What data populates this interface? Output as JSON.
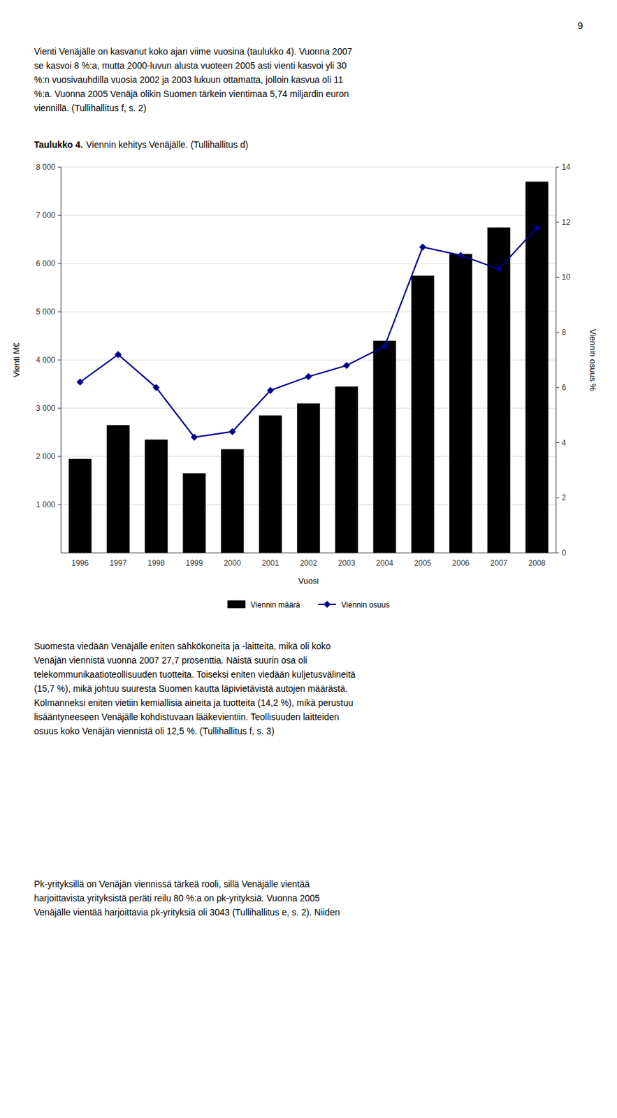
{
  "page": {
    "number": "9",
    "paragraphs": [
      [
        "Vienti Venäjälle on kasvanut koko ajan viime vuosina (taulukko 4). Vuonna 2007",
        "se kasvoi 8 %:a, mutta 2000-luvun alusta vuoteen 2005 asti vienti kasvoi yli 30",
        "%:n vuosivauhdilla vuosia 2002 ja 2003 lukuun ottamatta, jolloin kasvua oli 11",
        "%:a. Vuonna 2005 Venäjä olikin Suomen tärkein vientimaa 5,74 miljardin euron",
        "viennillä. (Tullihallitus f, s. 2)"
      ],
      [
        "Suomesta viedään Venäjälle eniten sähkökoneita ja -laitteita, mikä oli koko",
        "Venäjän viennistä vuonna 2007 27,7 prosenttia. Näistä suurin osa oli",
        "telekommunikaatioteollisuuden tuotteita. Toiseksi eniten viedään kuljetusvälineitä",
        "(15,7 %), mikä johtuu suuresta Suomen kautta läpivietävistä autojen määrästä.",
        "Kolmanneksi eniten vietiin kemiallisia aineita ja tuotteita (14,2 %), mikä perustuu",
        "lisääntyneeseen Venäjälle kohdistuvaan lääkevientiin. Teollisuuden laitteiden",
        "osuus koko Venäjän viennistä oli 12,5 %. (Tullihallitus f, s. 3)"
      ],
      [
        "Pk-yrityksillä on Venäjän viennissä tärkeä rooli, sillä Venäjälle vientää",
        "harjoittavista yrityksistä peräti reilu 80 %:a on pk-yrityksiä. Vuonna 2005",
        "Venäjälle vientää harjoittavia pk-yrityksiä oli 3043 (Tullihallitus e, s. 2). Niiden"
      ]
    ]
  },
  "chart_data": {
    "type": "bar",
    "title": "Taulukko 4.",
    "subtitle": "Viennin kehitys Venäjälle. (Tullihallitus d)",
    "x_label": "Vuosi",
    "y_label": "Vienti M€",
    "y2_label": "Viennin osuus %",
    "categories": [
      "1996",
      "1997",
      "1998",
      "1999",
      "2000",
      "2001",
      "2002",
      "2003",
      "2004",
      "2005",
      "2006",
      "2007",
      "2008"
    ],
    "series": [
      {
        "name": "Viennin määrä",
        "type": "bar",
        "color": "#000000",
        "values": [
          1950,
          2650,
          2350,
          1650,
          2150,
          2850,
          3100,
          3450,
          4400,
          5750,
          6200,
          6750,
          7700
        ]
      },
      {
        "name": "Viennin osuus",
        "type": "line",
        "color": "#00008B",
        "marker": "diamond",
        "axis": "y2",
        "values": [
          6.2,
          7.2,
          6.0,
          4.2,
          4.4,
          5.9,
          6.4,
          6.8,
          7.5,
          11.1,
          10.8,
          10.3,
          11.8
        ]
      }
    ],
    "ylim": [
      0,
      8000
    ],
    "yticks": [
      {
        "value": 1000,
        "label": "1 000"
      },
      {
        "value": 2000,
        "label": "2 000"
      },
      {
        "value": 3000,
        "label": "3 000"
      },
      {
        "value": 4000,
        "label": "4 000"
      },
      {
        "value": 5000,
        "label": "5 000"
      },
      {
        "value": 6000,
        "label": "6 000"
      },
      {
        "value": 7000,
        "label": "7 000"
      },
      {
        "value": 8000,
        "label": "8 000"
      }
    ],
    "y2lim": [
      0,
      14
    ],
    "y2ticks": [
      0,
      2,
      4,
      6,
      8,
      10,
      12,
      14
    ],
    "grid": true,
    "legend": "bottom"
  }
}
